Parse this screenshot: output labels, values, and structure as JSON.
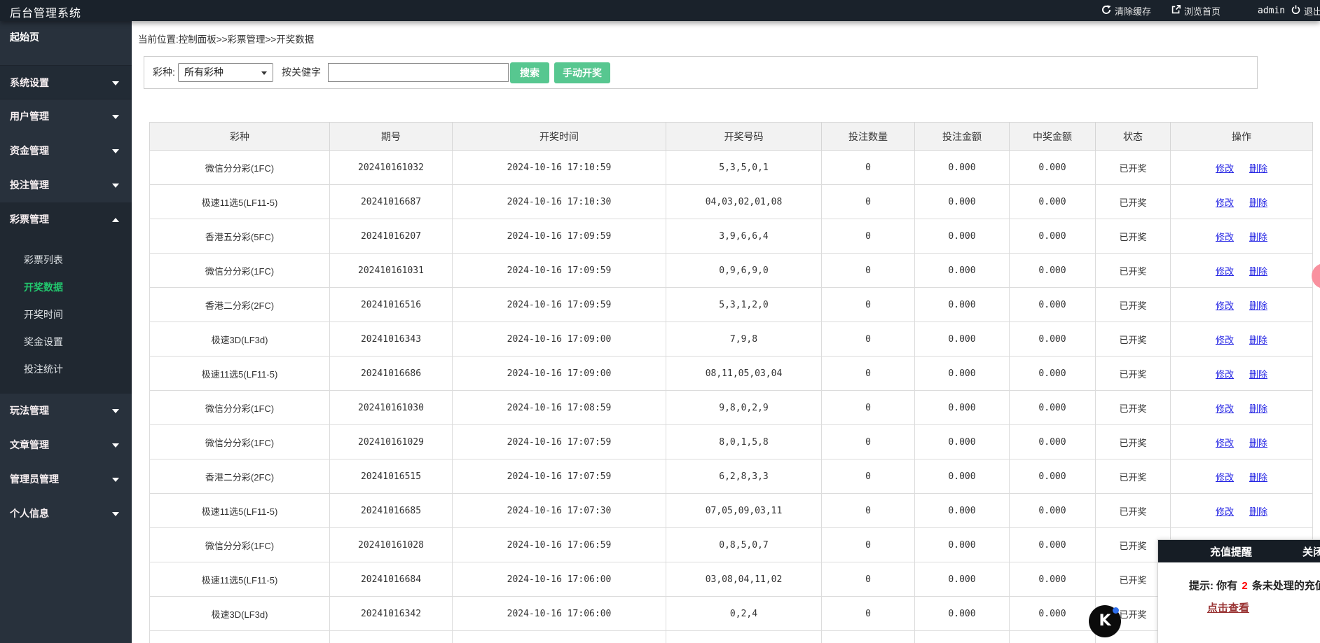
{
  "topbar": {
    "title": "后台管理系统",
    "clear_cache": "清除缓存",
    "browse_home": "浏览首页",
    "username": "admin",
    "logout": "退出"
  },
  "sidebar": {
    "home": "起始页",
    "groups": [
      {
        "label": "系统设置",
        "state": "collapsed",
        "highlight": true
      },
      {
        "label": "用户管理",
        "state": "collapsed"
      },
      {
        "label": "资金管理",
        "state": "collapsed"
      },
      {
        "label": "投注管理",
        "state": "collapsed"
      },
      {
        "label": "彩票管理",
        "state": "expanded",
        "children": [
          "彩票列表",
          "开奖数据",
          "开奖时间",
          "奖金设置",
          "投注统计"
        ],
        "active_child": "开奖数据"
      },
      {
        "label": "玩法管理",
        "state": "collapsed"
      },
      {
        "label": "文章管理",
        "state": "collapsed"
      },
      {
        "label": "管理员管理",
        "state": "collapsed"
      },
      {
        "label": "个人信息",
        "state": "collapsed"
      }
    ]
  },
  "breadcrumb": "当前位置:控制面板>>彩票管理>>开奖数据",
  "filter": {
    "lottery_label": "彩种:",
    "lottery_selected": "所有彩种",
    "keyword_label": "按关健字",
    "keyword_value": "",
    "search_button": "搜索",
    "manual_draw_button": "手动开奖"
  },
  "table": {
    "headers": [
      "彩种",
      "期号",
      "开奖时间",
      "开奖号码",
      "投注数量",
      "投注金额",
      "中奖金额",
      "状态",
      "操作"
    ],
    "action_edit": "修改",
    "action_delete": "删除",
    "rows": [
      {
        "lottery": "微信分分彩(1FC)",
        "issue": "202410161032",
        "time": "2024-10-16 17:10:59",
        "numbers": "5,3,5,0,1",
        "bet_count": "0",
        "bet_amount": "0.000",
        "win_amount": "0.000",
        "status": "已开奖"
      },
      {
        "lottery": "极速11选5(LF11-5)",
        "issue": "20241016687",
        "time": "2024-10-16 17:10:30",
        "numbers": "04,03,02,01,08",
        "bet_count": "0",
        "bet_amount": "0.000",
        "win_amount": "0.000",
        "status": "已开奖"
      },
      {
        "lottery": "香港五分彩(5FC)",
        "issue": "20241016207",
        "time": "2024-10-16 17:09:59",
        "numbers": "3,9,6,6,4",
        "bet_count": "0",
        "bet_amount": "0.000",
        "win_amount": "0.000",
        "status": "已开奖"
      },
      {
        "lottery": "微信分分彩(1FC)",
        "issue": "202410161031",
        "time": "2024-10-16 17:09:59",
        "numbers": "0,9,6,9,0",
        "bet_count": "0",
        "bet_amount": "0.000",
        "win_amount": "0.000",
        "status": "已开奖"
      },
      {
        "lottery": "香港二分彩(2FC)",
        "issue": "20241016516",
        "time": "2024-10-16 17:09:59",
        "numbers": "5,3,1,2,0",
        "bet_count": "0",
        "bet_amount": "0.000",
        "win_amount": "0.000",
        "status": "已开奖"
      },
      {
        "lottery": "极速3D(LF3d)",
        "issue": "20241016343",
        "time": "2024-10-16 17:09:00",
        "numbers": "7,9,8",
        "bet_count": "0",
        "bet_amount": "0.000",
        "win_amount": "0.000",
        "status": "已开奖"
      },
      {
        "lottery": "极速11选5(LF11-5)",
        "issue": "20241016686",
        "time": "2024-10-16 17:09:00",
        "numbers": "08,11,05,03,04",
        "bet_count": "0",
        "bet_amount": "0.000",
        "win_amount": "0.000",
        "status": "已开奖"
      },
      {
        "lottery": "微信分分彩(1FC)",
        "issue": "202410161030",
        "time": "2024-10-16 17:08:59",
        "numbers": "9,8,0,2,9",
        "bet_count": "0",
        "bet_amount": "0.000",
        "win_amount": "0.000",
        "status": "已开奖"
      },
      {
        "lottery": "微信分分彩(1FC)",
        "issue": "202410161029",
        "time": "2024-10-16 17:07:59",
        "numbers": "8,0,1,5,8",
        "bet_count": "0",
        "bet_amount": "0.000",
        "win_amount": "0.000",
        "status": "已开奖"
      },
      {
        "lottery": "香港二分彩(2FC)",
        "issue": "20241016515",
        "time": "2024-10-16 17:07:59",
        "numbers": "6,2,8,3,3",
        "bet_count": "0",
        "bet_amount": "0.000",
        "win_amount": "0.000",
        "status": "已开奖"
      },
      {
        "lottery": "极速11选5(LF11-5)",
        "issue": "20241016685",
        "time": "2024-10-16 17:07:30",
        "numbers": "07,05,09,03,11",
        "bet_count": "0",
        "bet_amount": "0.000",
        "win_amount": "0.000",
        "status": "已开奖"
      },
      {
        "lottery": "微信分分彩(1FC)",
        "issue": "202410161028",
        "time": "2024-10-16 17:06:59",
        "numbers": "0,8,5,0,7",
        "bet_count": "0",
        "bet_amount": "0.000",
        "win_amount": "0.000",
        "status": "已开奖"
      },
      {
        "lottery": "极速11选5(LF11-5)",
        "issue": "20241016684",
        "time": "2024-10-16 17:06:00",
        "numbers": "03,08,04,11,02",
        "bet_count": "0",
        "bet_amount": "0.000",
        "win_amount": "0.000",
        "status": "已开奖"
      },
      {
        "lottery": "极速3D(LF3d)",
        "issue": "20241016342",
        "time": "2024-10-16 17:06:00",
        "numbers": "0,2,4",
        "bet_count": "0",
        "bet_amount": "0.000",
        "win_amount": "0.000",
        "status": "已开奖"
      }
    ]
  },
  "popup": {
    "title": "充值提醒",
    "close": "关闭",
    "hint_prefix": "提示: 你有",
    "hint_count": "2",
    "hint_suffix": "条未处理的充值",
    "link": "点击查看"
  },
  "floating": {
    "k_letter": "K"
  },
  "colors": {
    "topbar_bg": "#1a222b",
    "sidebar_bg": "#28313c",
    "accent_green": "#57c790",
    "active_menu_green": "#22c86e",
    "link_blue": "#2525e4",
    "notice_count_red": "#ff0000",
    "notice_link": "#993333"
  }
}
